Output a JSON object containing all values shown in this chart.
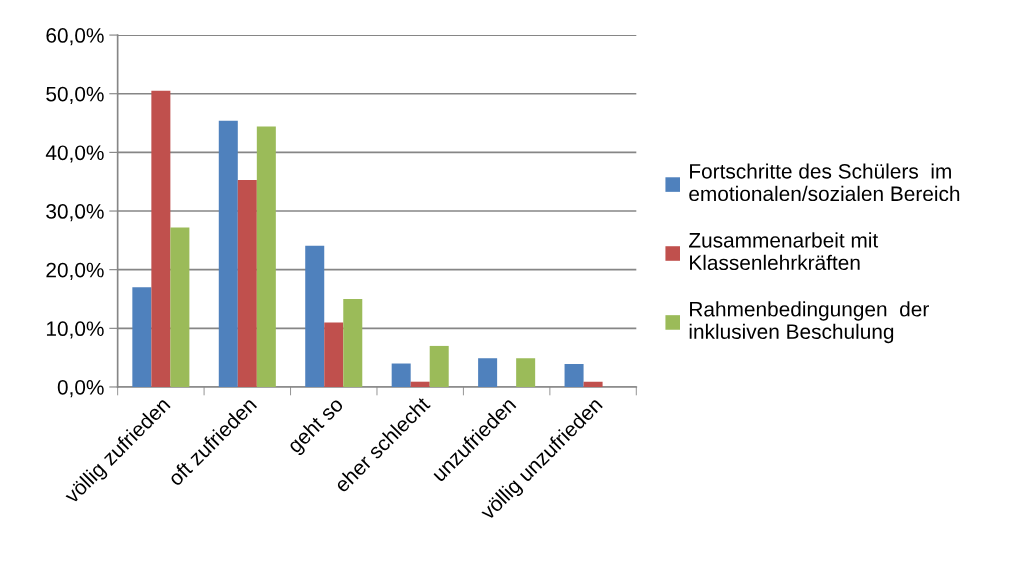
{
  "chart_data": {
    "type": "bar",
    "categories": [
      "völlig zufrieden",
      "oft zufrieden",
      "geht so",
      "eher schlecht",
      "unzufrieden",
      "völlig unzufrieden"
    ],
    "series": [
      {
        "name": "Fortschritte des Schülers  im emotionalen/sozialen Bereich",
        "color": "#4f81bd",
        "values": [
          17.0,
          45.4,
          24.1,
          4.0,
          4.9,
          3.9
        ]
      },
      {
        "name": "Zusammenarbeit mit Klassenlehrkräften",
        "color": "#c0504d",
        "values": [
          50.5,
          35.3,
          11.0,
          0.9,
          0,
          0.9
        ]
      },
      {
        "name": "Rahmenbedingungen  der inklusiven Beschulung",
        "color": "#9bbb59",
        "values": [
          27.2,
          44.4,
          15.0,
          7.0,
          4.9,
          0
        ]
      }
    ],
    "ylim": [
      0,
      60
    ],
    "yticks": [
      {
        "value": 0,
        "label": "0,0%"
      },
      {
        "value": 10,
        "label": "10,0%"
      },
      {
        "value": 20,
        "label": "20,0%"
      },
      {
        "value": 30,
        "label": "30,0%"
      },
      {
        "value": 40,
        "label": "40,0%"
      },
      {
        "value": 50,
        "label": "50,0%"
      },
      {
        "value": 60,
        "label": "60,0%"
      }
    ],
    "grid": "y",
    "legend": "right"
  }
}
